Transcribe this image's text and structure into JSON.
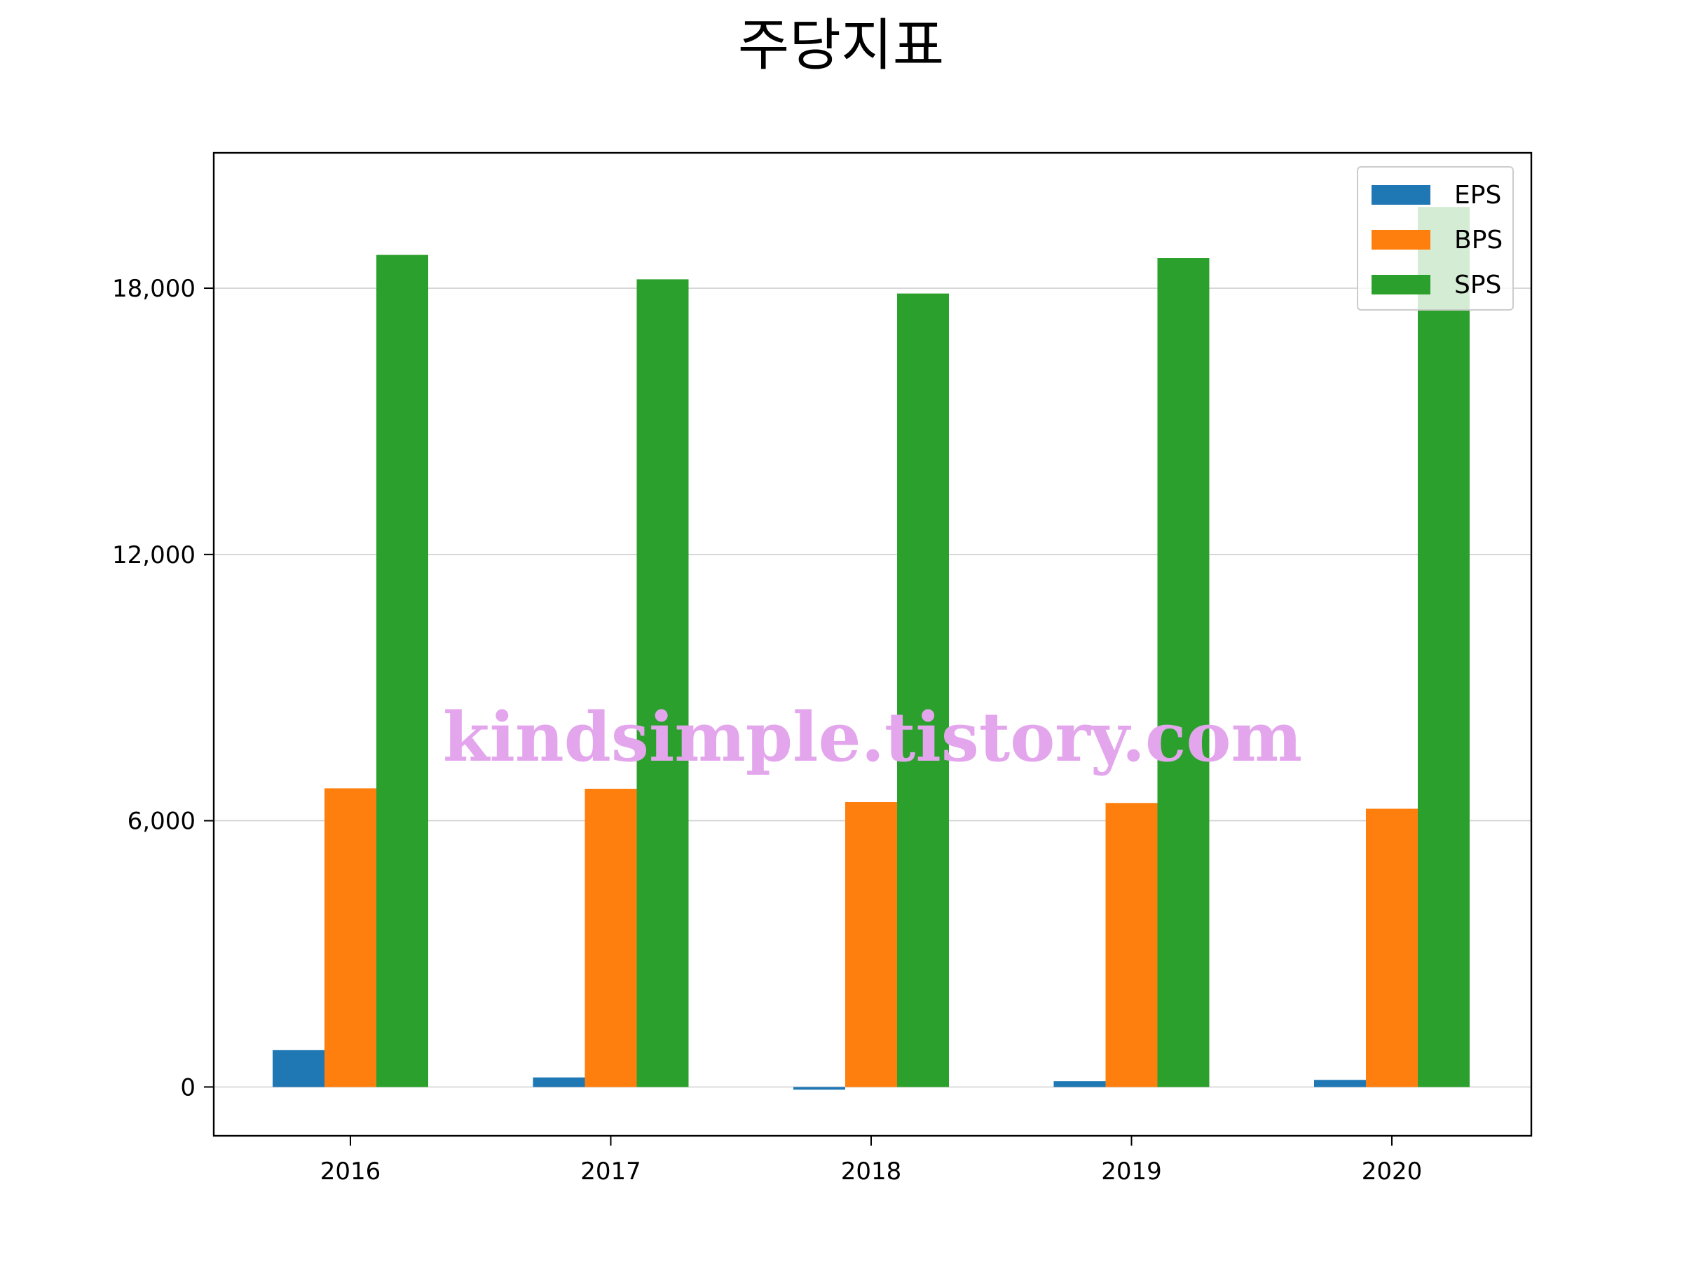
{
  "chart_data": {
    "type": "bar",
    "title": "주당지표",
    "xlabel": "",
    "ylabel": "",
    "categories": [
      "2016",
      "2017",
      "2018",
      "2019",
      "2020"
    ],
    "series": [
      {
        "name": "EPS",
        "color": "#1f77b4",
        "values": [
          830,
          215,
          -60,
          130,
          160
        ]
      },
      {
        "name": "BPS",
        "color": "#ff7f0e",
        "values": [
          6730,
          6720,
          6420,
          6400,
          6270
        ]
      },
      {
        "name": "SPS",
        "color": "#2ca02c",
        "values": [
          18750,
          18200,
          17880,
          18680,
          19830
        ]
      }
    ],
    "ylim": [
      -1100,
      21050
    ],
    "yticks": [
      0,
      6000,
      12000,
      18000
    ],
    "ytick_labels": [
      "0",
      "6,000",
      "12,000",
      "18,000"
    ],
    "grid": "y",
    "legend": "top-right"
  },
  "watermark": "kindsimple.tistory.com"
}
